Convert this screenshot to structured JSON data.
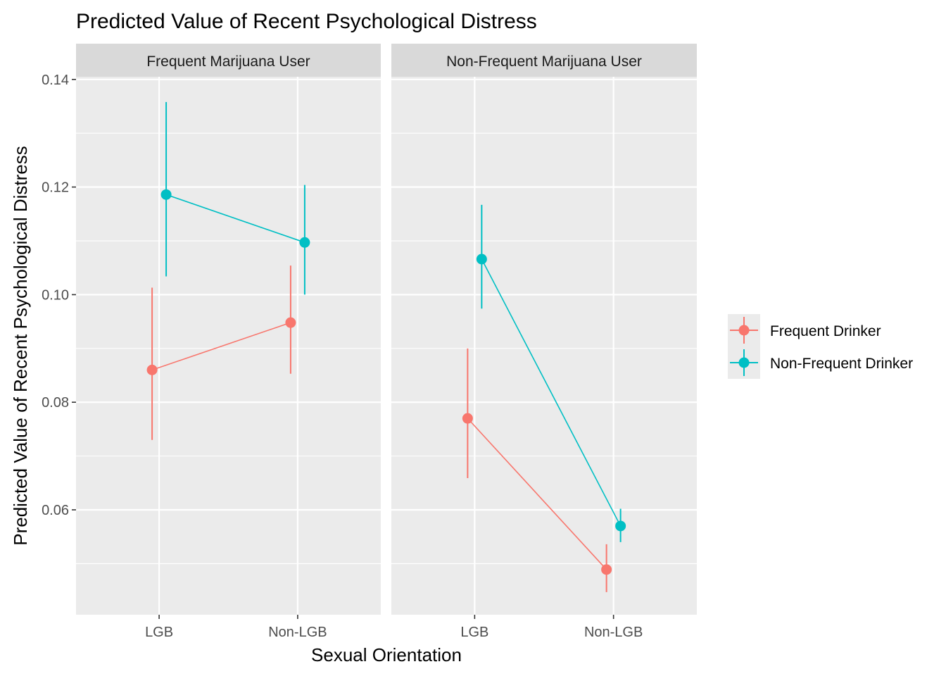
{
  "chart_data": {
    "type": "line",
    "title": "Predicted Value of Recent Psychological Distress",
    "xlabel": "Sexual Orientation",
    "ylabel": "Predicted Value of Recent Psychological Distress",
    "ylim": [
      0.0405,
      0.1405
    ],
    "yticks": [
      0.06,
      0.08,
      0.1,
      0.12,
      0.14
    ],
    "ytick_labels": [
      "0.06",
      "0.08",
      "0.10",
      "0.12",
      "0.14"
    ],
    "categories": [
      "LGB",
      "Non-LGB"
    ],
    "grid": true,
    "legend_position": "right",
    "facets": [
      {
        "name": "Frequent Marijuana User",
        "series": [
          {
            "name": "Frequent Drinker",
            "color": "#F8766D",
            "points": [
              {
                "x": "LGB",
                "y": 0.086,
                "lower": 0.073,
                "upper": 0.1013
              },
              {
                "x": "Non-LGB",
                "y": 0.0948,
                "lower": 0.0853,
                "upper": 0.1054
              }
            ]
          },
          {
            "name": "Non-Frequent Drinker",
            "color": "#00BFC4",
            "points": [
              {
                "x": "LGB",
                "y": 0.1186,
                "lower": 0.1034,
                "upper": 0.1358
              },
              {
                "x": "Non-LGB",
                "y": 0.1097,
                "lower": 0.1,
                "upper": 0.1204
              }
            ]
          }
        ]
      },
      {
        "name": "Non-Frequent Marijuana User",
        "series": [
          {
            "name": "Frequent Drinker",
            "color": "#F8766D",
            "points": [
              {
                "x": "LGB",
                "y": 0.077,
                "lower": 0.0659,
                "upper": 0.09
              },
              {
                "x": "Non-LGB",
                "y": 0.0489,
                "lower": 0.0447,
                "upper": 0.0536
              }
            ]
          },
          {
            "name": "Non-Frequent Drinker",
            "color": "#00BFC4",
            "points": [
              {
                "x": "LGB",
                "y": 0.1066,
                "lower": 0.0974,
                "upper": 0.1167
              },
              {
                "x": "Non-LGB",
                "y": 0.057,
                "lower": 0.054,
                "upper": 0.0602
              }
            ]
          }
        ]
      }
    ],
    "legend": [
      {
        "name": "Frequent Drinker",
        "color": "#F8766D"
      },
      {
        "name": "Non-Frequent Drinker",
        "color": "#00BFC4"
      }
    ]
  }
}
